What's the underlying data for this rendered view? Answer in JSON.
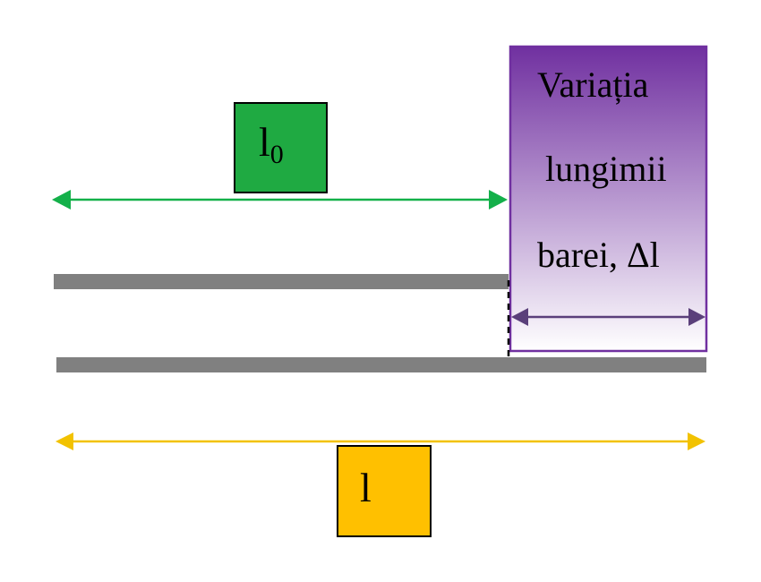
{
  "labels": {
    "l0_main": "l",
    "l0_sub": "0",
    "delta_line1": "Variația",
    "delta_line2": "lungimii",
    "delta_line3": "barei, Δl",
    "l_final": "l"
  },
  "colors": {
    "background": "#ffffff",
    "bar": "#808080",
    "l0_box": "#1faa42",
    "l0_arrow": "#14b04a",
    "l_box": "#ffc000",
    "l_arrow": "#f2c200",
    "delta_border": "#7030a0",
    "delta_top": "#7030a0",
    "delta_bottom": "#ffffff",
    "delta_arrow": "#5a3f7a",
    "dashed": "#000000"
  }
}
